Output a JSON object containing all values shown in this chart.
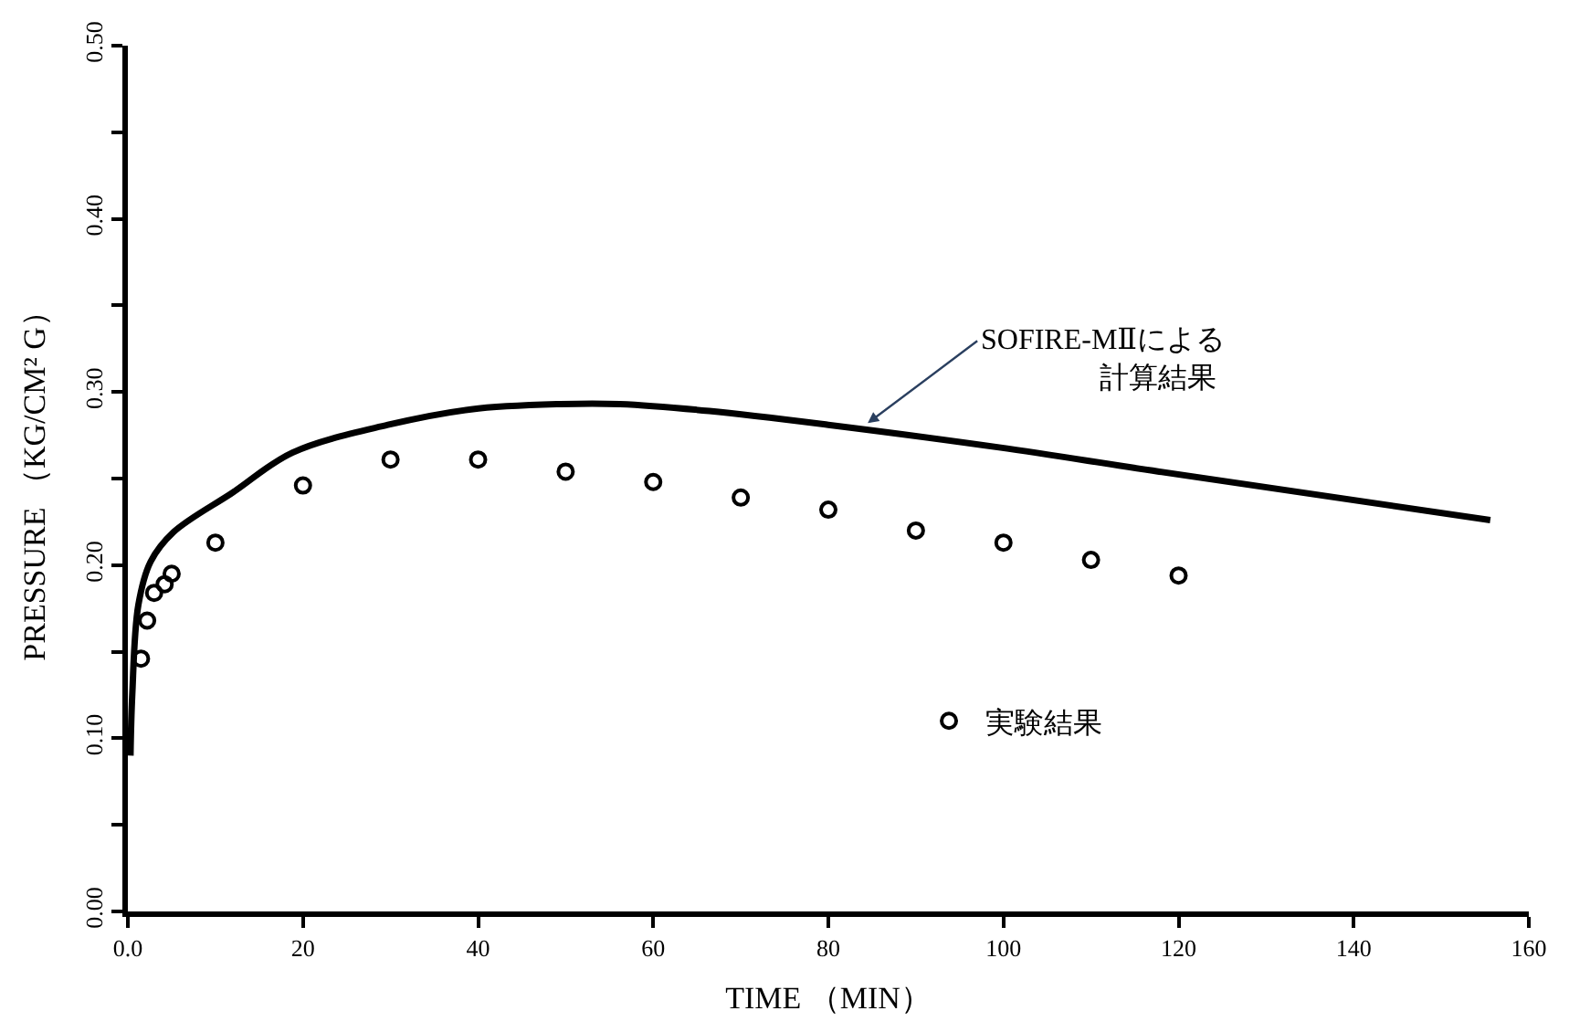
{
  "chart_data": {
    "type": "line",
    "xlabel": "TIME （MIN）",
    "ylabel": "PRESSURE （KG/CM² G）",
    "xlim": [
      0,
      160
    ],
    "xticks": [
      {
        "value": 0,
        "label": "0.0"
      },
      20,
      40,
      60,
      80,
      100,
      120,
      140,
      160
    ],
    "ylim": [
      0,
      0.5
    ],
    "yticks": [
      {
        "value": 0,
        "label": "0.00"
      },
      {
        "value": 0.05,
        "label": null
      },
      {
        "value": 0.1,
        "label": "0.10"
      },
      {
        "value": 0.15,
        "label": null
      },
      {
        "value": 0.2,
        "label": "0.20"
      },
      {
        "value": 0.25,
        "label": null
      },
      {
        "value": 0.3,
        "label": "0.30"
      },
      {
        "value": 0.35,
        "label": null
      },
      {
        "value": 0.4,
        "label": "0.40"
      },
      {
        "value": 0.45,
        "label": null
      },
      {
        "value": 0.5,
        "label": "0.50"
      }
    ],
    "legend": "bottom right",
    "series": [
      {
        "color": "#000000",
        "line_style": "solid",
        "marker": "none",
        "x": [
          0.3,
          0.5,
          1.2,
          2.6,
          5.2,
          12,
          18.8,
          29.7,
          39.2,
          49.4,
          56.2,
          66.4,
          80,
          99.5,
          117.8,
          155.6
        ],
        "values": [
          0.09,
          0.125,
          0.177,
          0.202,
          0.219,
          0.242,
          0.265,
          0.281,
          0.29,
          0.293,
          0.293,
          0.289,
          0.281,
          0.268,
          0.254,
          0.226
        ]
      },
      {
        "type": "scatter",
        "name": "実験結果",
        "color": "#000000",
        "marker": "circle",
        "x": [
          1.5,
          2.2,
          3,
          4.2,
          5,
          10,
          20,
          30,
          40,
          50,
          60,
          70,
          80,
          90,
          100,
          110,
          120
        ],
        "values": [
          0.146,
          0.168,
          0.184,
          0.189,
          0.195,
          0.213,
          0.246,
          0.261,
          0.261,
          0.254,
          0.248,
          0.239,
          0.232,
          0.22,
          0.213,
          0.203,
          0.194
        ]
      }
    ],
    "annotations": [
      {
        "text": "SOFIRE-MⅡによる",
        "x": 84.5,
        "y": 0.282
      },
      "計算結果"
    ]
  }
}
